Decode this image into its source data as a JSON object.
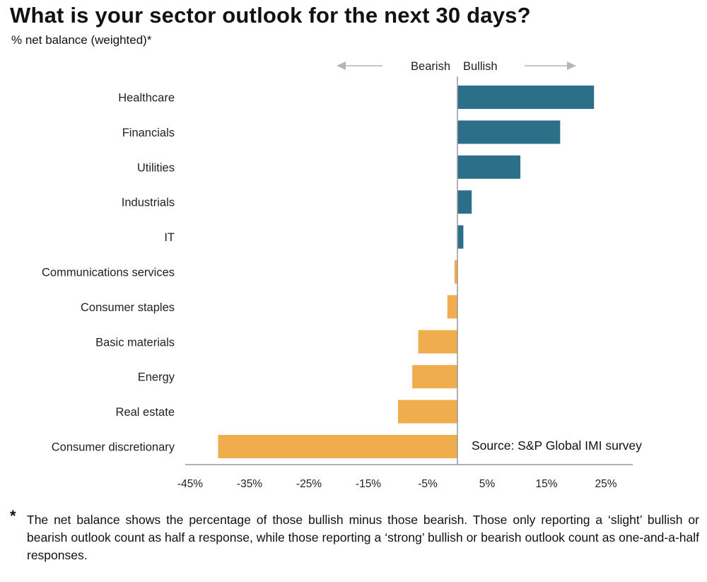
{
  "title": "What is your sector outlook for the next 30 days?",
  "subtitle": "% net balance (weighted)*",
  "direction_labels": {
    "bearish": "Bearish",
    "bullish": "Bullish"
  },
  "source": "Source: S&P Global IMI survey",
  "footnote": {
    "marker": "*",
    "text": "The net balance shows the percentage of those bullish minus those bearish. Those only reporting a ‘slight’ bullish or bearish outlook count as half a response, while those reporting a ‘strong’ bullish or bearish outlook count as one-and-a-half responses."
  },
  "colors": {
    "bullish": "#2b6f88",
    "bearish": "#f0ad4e",
    "axis": "#999999",
    "arrow": "#b5b5b5"
  },
  "chart_data": {
    "type": "bar",
    "orientation": "horizontal",
    "categories": [
      "Healthcare",
      "Financials",
      "Utilities",
      "Industrials",
      "IT",
      "Communications services",
      "Consumer staples",
      "Basic materials",
      "Energy",
      "Real estate",
      "Consumer discretionary"
    ],
    "values": [
      23,
      17.3,
      10.6,
      2.4,
      1.0,
      -0.5,
      -1.7,
      -6.6,
      -7.6,
      -10,
      -40.3
    ],
    "xlim": [
      -45,
      30
    ],
    "xticks": [
      -45,
      -35,
      -25,
      -15,
      -5,
      5,
      15,
      25
    ],
    "xtick_labels": [
      "-45%",
      "-35%",
      "-25%",
      "-15%",
      "-5%",
      "5%",
      "15%",
      "25%"
    ],
    "title": "What is your sector outlook for the next 30 days?",
    "subtitle": "% net balance (weighted)*",
    "grid": false
  }
}
